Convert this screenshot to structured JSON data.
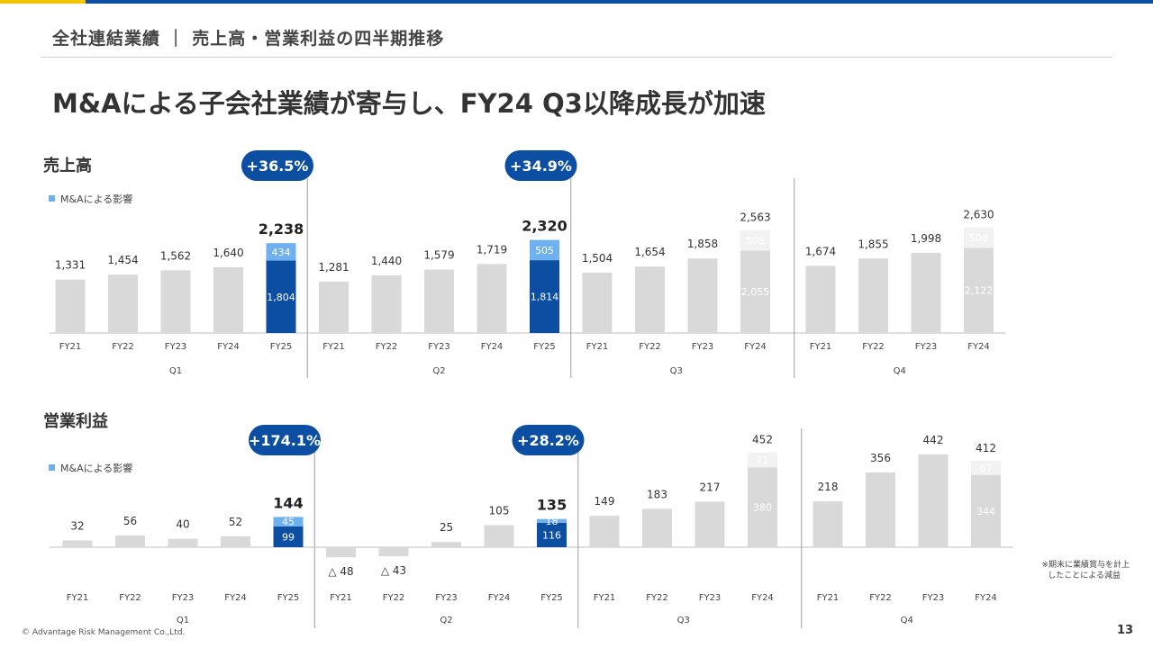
{
  "header": {
    "section_title": "全社連結業績 ｜ 売上高・営業利益の四半期推移",
    "headline": "M&Aによる子会社業績が寄与し、FY24 Q3以降成長が加速"
  },
  "footer": {
    "copyright": "© Advantage Risk Management Co.,Ltd.",
    "page_number": "13"
  },
  "colors": {
    "base_bar": "#d9d9d9",
    "fy25_bar": "#0b4ea2",
    "ma_bar": "#6fb0ef",
    "fy24_ma_bar": "#f2f2f2",
    "badge": "#0b4ea2"
  },
  "chart_data": [
    {
      "type": "bar",
      "title": "売上高",
      "legend": "M&Aによる影響",
      "quarters": [
        "Q1",
        "Q2",
        "Q3",
        "Q4"
      ],
      "growth": [
        {
          "quarter": "Q1",
          "value": "+36.5%"
        },
        {
          "quarter": "Q2",
          "value": "+34.9%"
        }
      ],
      "groups": [
        {
          "quarter": "Q1",
          "bars": [
            {
              "fy": "FY21",
              "value": 1331,
              "label": "1,331"
            },
            {
              "fy": "FY22",
              "value": 1454,
              "label": "1,454"
            },
            {
              "fy": "FY23",
              "value": 1562,
              "label": "1,562"
            },
            {
              "fy": "FY24",
              "value": 1640,
              "label": "1,640"
            },
            {
              "fy": "FY25",
              "value": 2238,
              "label": "2,238",
              "base": 1804,
              "base_label": "1,804",
              "ma": 434,
              "ma_label": "434"
            }
          ]
        },
        {
          "quarter": "Q2",
          "bars": [
            {
              "fy": "FY21",
              "value": 1281,
              "label": "1,281"
            },
            {
              "fy": "FY22",
              "value": 1440,
              "label": "1,440"
            },
            {
              "fy": "FY23",
              "value": 1579,
              "label": "1,579"
            },
            {
              "fy": "FY24",
              "value": 1719,
              "label": "1,719"
            },
            {
              "fy": "FY25",
              "value": 2320,
              "label": "2,320",
              "base": 1814,
              "base_label": "1,814",
              "ma": 505,
              "ma_label": "505"
            }
          ]
        },
        {
          "quarter": "Q3",
          "bars": [
            {
              "fy": "FY21",
              "value": 1504,
              "label": "1,504"
            },
            {
              "fy": "FY22",
              "value": 1654,
              "label": "1,654"
            },
            {
              "fy": "FY23",
              "value": 1858,
              "label": "1,858"
            },
            {
              "fy": "FY24",
              "value": 2563,
              "label": "2,563",
              "base": 2055,
              "base_label": "2,055",
              "ma": 508,
              "ma_label": "508"
            }
          ]
        },
        {
          "quarter": "Q4",
          "bars": [
            {
              "fy": "FY21",
              "value": 1674,
              "label": "1,674"
            },
            {
              "fy": "FY22",
              "value": 1855,
              "label": "1,855"
            },
            {
              "fy": "FY23",
              "value": 1998,
              "label": "1,998"
            },
            {
              "fy": "FY24",
              "value": 2630,
              "label": "2,630",
              "base": 2122,
              "base_label": "2,122",
              "ma": 508,
              "ma_label": "508"
            }
          ]
        }
      ]
    },
    {
      "type": "bar",
      "title": "営業利益",
      "legend": "M&Aによる影響",
      "note": "※期末に業績賞与を計上したことによる減益",
      "quarters": [
        "Q1",
        "Q2",
        "Q3",
        "Q4"
      ],
      "growth": [
        {
          "quarter": "Q1",
          "value": "+174.1%"
        },
        {
          "quarter": "Q2",
          "value": "+28.2%"
        }
      ],
      "groups": [
        {
          "quarter": "Q1",
          "bars": [
            {
              "fy": "FY21",
              "value": 32,
              "label": "32"
            },
            {
              "fy": "FY22",
              "value": 56,
              "label": "56"
            },
            {
              "fy": "FY23",
              "value": 40,
              "label": "40"
            },
            {
              "fy": "FY24",
              "value": 52,
              "label": "52"
            },
            {
              "fy": "FY25",
              "value": 144,
              "label": "144",
              "base": 99,
              "base_label": "99",
              "ma": 45,
              "ma_label": "45"
            }
          ]
        },
        {
          "quarter": "Q2",
          "bars": [
            {
              "fy": "FY21",
              "value": -48,
              "label": "△ 48"
            },
            {
              "fy": "FY22",
              "value": -43,
              "label": "△ 43"
            },
            {
              "fy": "FY23",
              "value": 25,
              "label": "25"
            },
            {
              "fy": "FY24",
              "value": 105,
              "label": "105"
            },
            {
              "fy": "FY25",
              "value": 135,
              "label": "135",
              "base": 116,
              "base_label": "116",
              "ma": 18,
              "ma_label": "18"
            }
          ]
        },
        {
          "quarter": "Q3",
          "bars": [
            {
              "fy": "FY21",
              "value": 149,
              "label": "149"
            },
            {
              "fy": "FY22",
              "value": 183,
              "label": "183"
            },
            {
              "fy": "FY23",
              "value": 217,
              "label": "217"
            },
            {
              "fy": "FY24",
              "value": 452,
              "label": "452",
              "base": 380,
              "base_label": "380",
              "ma": 71,
              "ma_label": "71"
            }
          ]
        },
        {
          "quarter": "Q4",
          "bars": [
            {
              "fy": "FY21",
              "value": 218,
              "label": "218"
            },
            {
              "fy": "FY22",
              "value": 356,
              "label": "356"
            },
            {
              "fy": "FY23",
              "value": 442,
              "label": "442"
            },
            {
              "fy": "FY24",
              "value": 412,
              "label": "412",
              "base": 344,
              "base_label": "344",
              "ma": 67,
              "ma_label": "67"
            }
          ]
        }
      ]
    }
  ]
}
